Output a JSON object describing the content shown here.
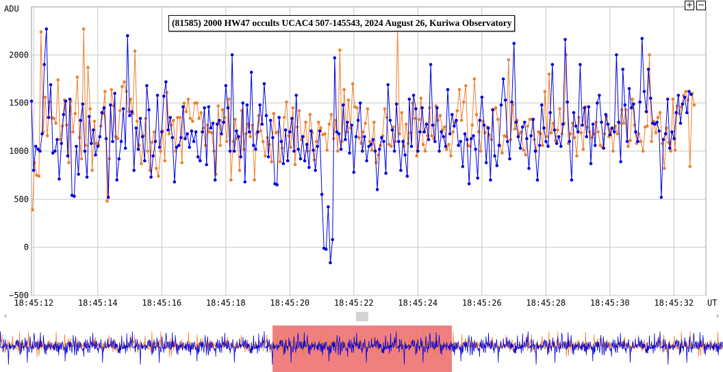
{
  "chart_data": {
    "type": "line",
    "title": "(81585) 2000 HW47 occults UCAC4 507-145543, 2024 August 26, Kuriwa Observatory",
    "ylabel": "ADU",
    "xlabel": "UT",
    "ylim": [
      -500,
      2500
    ],
    "y_ticks": [
      "−500",
      "0",
      "500",
      "1000",
      "1500",
      "2000"
    ],
    "y_tick_values": [
      -500,
      0,
      500,
      1000,
      1500,
      2000
    ],
    "x_ticks": [
      "18:45:12",
      "18:45:14",
      "18:45:16",
      "18:45:18",
      "18:45:20",
      "18:45:22",
      "18:45:24",
      "18:45:26",
      "18:45:28",
      "18:45:30",
      "18:45:32"
    ],
    "x_tick_seconds": [
      12,
      14,
      16,
      18,
      20,
      22,
      24,
      26,
      28,
      30,
      32
    ],
    "xlim_seconds": [
      11.93,
      33.0
    ],
    "grid": true,
    "series": [
      {
        "color": "#0000dd",
        "x_start": 11.93,
        "x_step": 0.0667,
        "values": [
          1520,
          800,
          1050,
          1020,
          1000,
          1180,
          1900,
          2270,
          1350,
          1690,
          980,
          1000,
          1120,
          710,
          1080,
          1380,
          1520,
          950,
          1540,
          540,
          530,
          1050,
          760,
          1320,
          1490,
          1000,
          730,
          1360,
          1080,
          1220,
          960,
          1050,
          1150,
          1400,
          1450,
          1130,
          520,
          1480,
          1100,
          1600,
          700,
          920,
          1100,
          1440,
          1030,
          2200,
          1370,
          1410,
          800,
          1240,
          1020,
          1340,
          1150,
          900,
          1680,
          1430,
          730,
          950,
          1100,
          1580,
          1040,
          1200,
          1570,
          1720,
          1220,
          1350,
          1140,
          680,
          1040,
          1060,
          1140,
          1460,
          1130,
          1180,
          1040,
          1210,
          1100,
          1200,
          940,
          900,
          1200,
          1450,
          860,
          1460,
          1240,
          1290,
          700,
          1280,
          1320,
          1180,
          1300,
          1680,
          1450,
          1000,
          2000,
          1000,
          1210,
          1150,
          940,
          1500,
          680,
          1480,
          1200,
          1820,
          1060,
          1020,
          1200,
          1480,
          1280,
          1700,
          1370,
          940,
          1320,
          1140,
          660,
          650,
          1350,
          1100,
          870,
          1220,
          900,
          1200,
          1340,
          1000,
          1580,
          1020,
          920,
          1150,
          900,
          1070,
          830,
          1210,
          1010,
          800,
          1050,
          1210,
          550,
          -10,
          -20,
          420,
          -160,
          80,
          1970,
          1200,
          1180,
          1020,
          1480,
          1120,
          1300,
          980,
          1270,
          780,
          1150,
          1320,
          1500,
          1000,
          1150,
          900,
          1050,
          1070,
          1120,
          1000,
          600,
          1020,
          1140,
          1100,
          770,
          1690,
          1320,
          1220,
          1000,
          1490,
          1100,
          800,
          1100,
          960,
          740,
          1540,
          1050,
          1580,
          1440,
          1000,
          1200,
          1450,
          1200,
          1280,
          1120,
          1900,
          1270,
          1100,
          1450,
          1000,
          1200,
          1150,
          1050,
          1640,
          1180,
          1380,
          1260,
          1320,
          1060,
          1100,
          840,
          1180,
          1120,
          660,
          1130,
          1160,
          1020,
          720,
          1320,
          1560,
          1270,
          880,
          1240,
          700,
          1430,
          950,
          850,
          1060,
          1480,
          1750,
          1530,
          1100,
          920,
          1510,
          2120,
          1300,
          1150,
          1030,
          1250,
          1300,
          1130,
          820,
          1160,
          1330,
          1000,
          700,
          1060,
          1480,
          1240,
          1100,
          1050,
          1400,
          1900,
          1220,
          1080,
          1150,
          1050,
          1280,
          2160,
          1510,
          1100,
          700,
          1400,
          1260,
          1200,
          1900,
          1270,
          1450,
          1150,
          1460,
          870,
          1280,
          1060,
          1500,
          1580,
          1300,
          1030,
          1380,
          1280,
          1170,
          1240,
          1200,
          2000,
          1300,
          890,
          1850,
          1480,
          1100,
          1650,
          1450,
          1490,
          1200,
          1100,
          1510,
          2170,
          1620,
          1410,
          1850,
          1550,
          1290,
          1280,
          1300,
          1210,
          520,
          1120,
          1180,
          1540,
          1030,
          1200,
          1130,
          1400,
          1580,
          1290,
          1490,
          1560,
          1400,
          1620,
          1590
        ]
      },
      {
        "color": "#ee7f2d",
        "x_start": 11.96,
        "x_step": 0.0667,
        "values": [
          390,
          880,
          750,
          740,
          2240,
          1200,
          1560,
          1160,
          1510,
          1350,
          1340,
          1290,
          1740,
          1120,
          1260,
          1530,
          1270,
          880,
          1520,
          1200,
          1390,
          1770,
          1140,
          920,
          2270,
          1060,
          1870,
          1440,
          800,
          1310,
          1080,
          1060,
          1260,
          1390,
          1620,
          480,
          920,
          1640,
          1470,
          1150,
          1130,
          1420,
          1670,
          1720,
          1620,
          1410,
          1540,
          1390,
          2040,
          1310,
          1060,
          870,
          1160,
          1340,
          1000,
          800,
          1090,
          1200,
          820,
          740,
          1000,
          1210,
          900,
          1610,
          1180,
          1270,
          1320,
          1000,
          1350,
          1350,
          880,
          1500,
          1410,
          1540,
          1340,
          1310,
          1500,
          1500,
          1340,
          1400,
          1240,
          1060,
          1270,
          1200,
          1190,
          1000,
          760,
          1470,
          1060,
          1430,
          1350,
          1100,
          1540,
          700,
          1100,
          1330,
          1130,
          800,
          1420,
          1020,
          1180,
          1280,
          1150,
          1270,
          700,
          1180,
          1370,
          1210,
          1100,
          950,
          1140,
          1070,
          890,
          1390,
          1190,
          1200,
          890,
          1030,
          1350,
          1510,
          1160,
          1040,
          1450,
          860,
          1250,
          1420,
          1120,
          1150,
          1300,
          1000,
          1380,
          1190,
          910,
          1100,
          1300,
          1240,
          1170,
          1180,
          1010,
          1280,
          1380,
          1130,
          1320,
          1000,
          2050,
          1100,
          1640,
          1200,
          1530,
          1240,
          1700,
          1460,
          1450,
          1140,
          1080,
          1200,
          1290,
          1440,
          1100,
          1010,
          1300,
          880,
          960,
          1060,
          1160,
          1440,
          1350,
          1070,
          1050,
          1250,
          1100,
          2280,
          1180,
          1400,
          1050,
          1280,
          1080,
          1190,
          1500,
          1340,
          950,
          1330,
          1550,
          1070,
          1000,
          1160,
          1450,
          1160,
          1130,
          1470,
          1320,
          1370,
          1220,
          1250,
          1020,
          1070,
          950,
          1200,
          1300,
          1420,
          1640,
          1320,
          1510,
          1680,
          1060,
          1050,
          1270,
          1750,
          1380,
          1200,
          1000,
          1310,
          1190,
          1250,
          1170,
          1120,
          1430,
          1450,
          1330,
          1060,
          980,
          1160,
          1150,
          1950,
          1120,
          1480,
          1230,
          1320,
          1180,
          1200,
          1010,
          960,
          1260,
          1330,
          1330,
          1120,
          1000,
          1200,
          1180,
          1060,
          1620,
          1150,
          1800,
          1190,
          1290,
          1110,
          1220,
          1440,
          1180,
          1290,
          2000,
          1080,
          1180,
          1290,
          1140,
          950,
          1350,
          1190,
          1020,
          1460,
          1250,
          1200,
          1140,
          1180,
          1300,
          1200,
          1060,
          1040,
          1180,
          1360,
          1150,
          1230,
          1000,
          1260,
          1180,
          1290,
          1430,
          1290,
          1430,
          1050,
          1110,
          1540,
          1270,
          1080,
          1180,
          1100,
          1000,
          1250,
          1260,
          2000,
          1100,
          1310,
          1190,
          1350,
          1400,
          1080,
          820,
          1240,
          1090,
          1000,
          1540,
          1010,
          1470,
          1390,
          1460,
          1580,
          1620,
          1530,
          840,
          1600,
          1480
        ]
      }
    ]
  },
  "ui": {
    "zoom_in": "+",
    "zoom_out": "−",
    "scroll_left": "‹",
    "scroll_right": "›",
    "overview_selection": {
      "x_start_fraction": 0.377,
      "x_end_fraction": 0.625
    }
  }
}
